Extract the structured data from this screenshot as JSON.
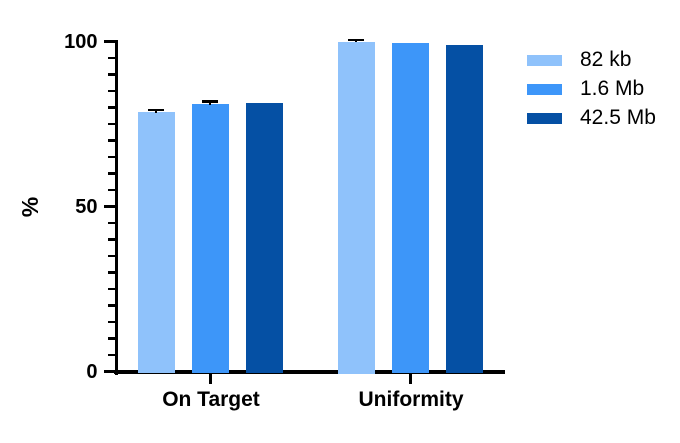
{
  "page": {
    "background": "#ffffff"
  },
  "chart_data": {
    "type": "bar",
    "title": "",
    "xlabel": "",
    "ylabel": "%",
    "categories": [
      "On Target",
      "Uniformity"
    ],
    "series": [
      {
        "name": "82 kb",
        "color": "#8FC2FB",
        "values": [
          78.5,
          100.0
        ],
        "errors": [
          0.8,
          0.5
        ]
      },
      {
        "name": "1.6 Mb",
        "color": "#3D96F9",
        "values": [
          81.0,
          99.4
        ],
        "errors": [
          0.8,
          0.0
        ]
      },
      {
        "name": "42.5 Mb",
        "color": "#0550A4",
        "values": [
          81.3,
          98.8
        ],
        "errors": [
          0.0,
          0.0
        ]
      }
    ],
    "ylim": [
      0,
      100
    ],
    "yticks": [
      0,
      50,
      100
    ],
    "minor_tick_interval": 5,
    "grid": false,
    "legend_position": "right",
    "axis_color": "#000000",
    "error_bar_color": "#000000"
  }
}
